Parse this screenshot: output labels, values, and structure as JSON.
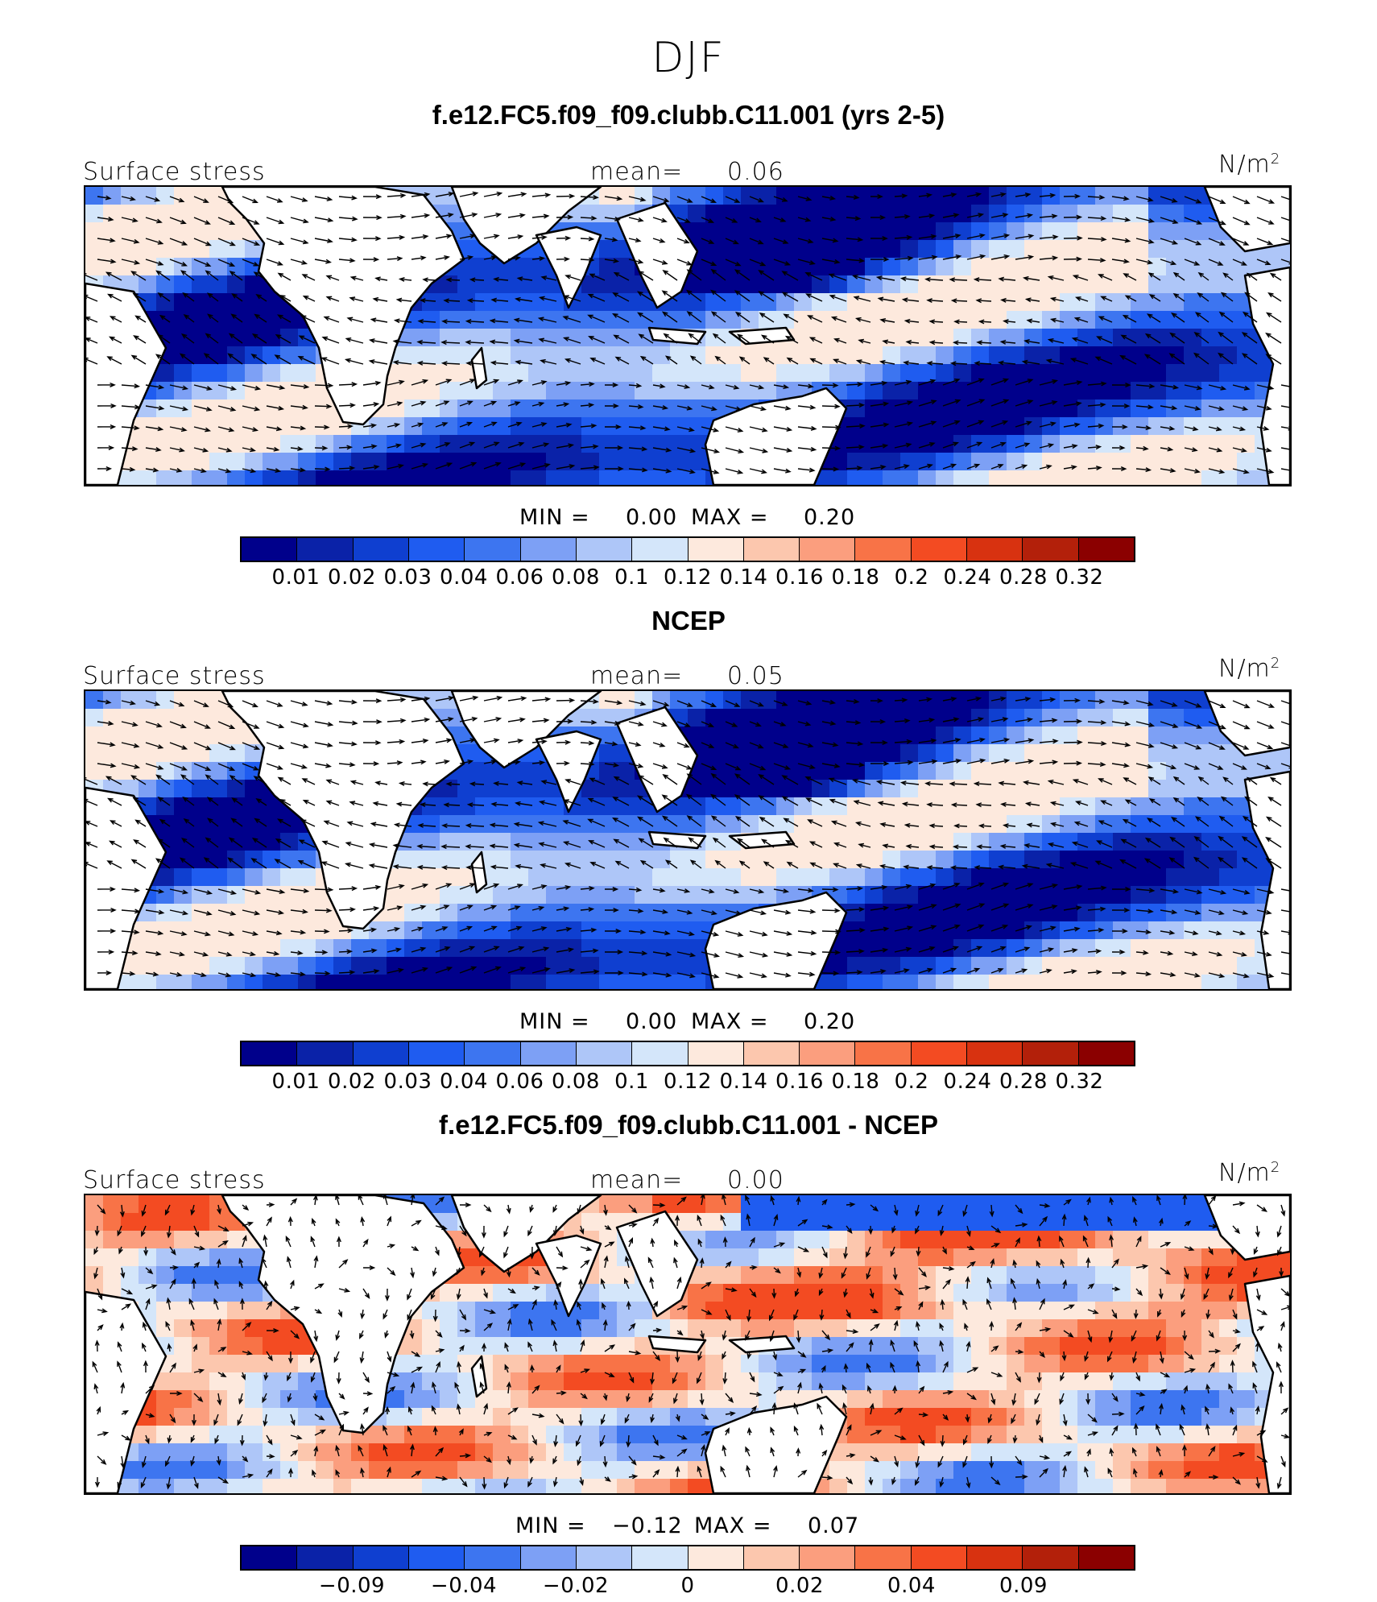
{
  "figure_title": "DJF",
  "panels": [
    {
      "title": "f.e12.FC5.f09_f09.clubb.C11.001 (yrs 2-5)",
      "field_label": "Surface stress",
      "mean_label": "mean=",
      "mean_value": "0.06",
      "units": "N/m",
      "units_sup": "2",
      "min_label": "MIN =",
      "min_value": "0.00",
      "max_label": "MAX =",
      "max_value": "0.20",
      "colorbar": {
        "colors": [
          "#00008b",
          "#0a22a8",
          "#0f3fd0",
          "#1f5cf0",
          "#3d75f0",
          "#7da0f5",
          "#aec6f8",
          "#d4e6fa",
          "#fde9dd",
          "#fcc7ae",
          "#fb9e7e",
          "#f87347",
          "#f34b22",
          "#d83210",
          "#b3200a",
          "#8b0000"
        ],
        "ticks": [
          "0.01",
          "0.02",
          "0.03",
          "0.04",
          "0.06",
          "0.08",
          "0.1",
          "0.12",
          "0.14",
          "0.16",
          "0.18",
          "0.2",
          "0.24",
          "0.28",
          "0.32"
        ]
      },
      "field_type": "positive"
    },
    {
      "title": "NCEP",
      "field_label": "Surface stress",
      "mean_label": "mean=",
      "mean_value": "0.05",
      "units": "N/m",
      "units_sup": "2",
      "min_label": "MIN =",
      "min_value": "0.00",
      "max_label": "MAX =",
      "max_value": "0.20",
      "colorbar": {
        "colors": [
          "#00008b",
          "#0a22a8",
          "#0f3fd0",
          "#1f5cf0",
          "#3d75f0",
          "#7da0f5",
          "#aec6f8",
          "#d4e6fa",
          "#fde9dd",
          "#fcc7ae",
          "#fb9e7e",
          "#f87347",
          "#f34b22",
          "#d83210",
          "#b3200a",
          "#8b0000"
        ],
        "ticks": [
          "0.01",
          "0.02",
          "0.03",
          "0.04",
          "0.06",
          "0.08",
          "0.1",
          "0.12",
          "0.14",
          "0.16",
          "0.18",
          "0.2",
          "0.24",
          "0.28",
          "0.32"
        ]
      },
      "field_type": "positive"
    },
    {
      "title": "f.e12.FC5.f09_f09.clubb.C11.001 - NCEP",
      "field_label": "Surface stress",
      "mean_label": "mean=",
      "mean_value": "0.00",
      "units": "N/m",
      "units_sup": "2",
      "min_label": "MIN =",
      "min_value": "−0.12",
      "max_label": "MAX =",
      "max_value": "0.07",
      "colorbar": {
        "colors": [
          "#00008b",
          "#0a22a8",
          "#0f3fd0",
          "#1f5cf0",
          "#3d75f0",
          "#7da0f5",
          "#aec6f8",
          "#d4e6fa",
          "#fde9dd",
          "#fcc7ae",
          "#fb9e7e",
          "#f87347",
          "#f34b22",
          "#d83210",
          "#b3200a",
          "#8b0000"
        ],
        "ticks": [
          "−0.09",
          "−0.04",
          "−0.02",
          "0",
          "0.02",
          "0.04",
          "0.09"
        ]
      },
      "field_type": "difference"
    }
  ]
}
